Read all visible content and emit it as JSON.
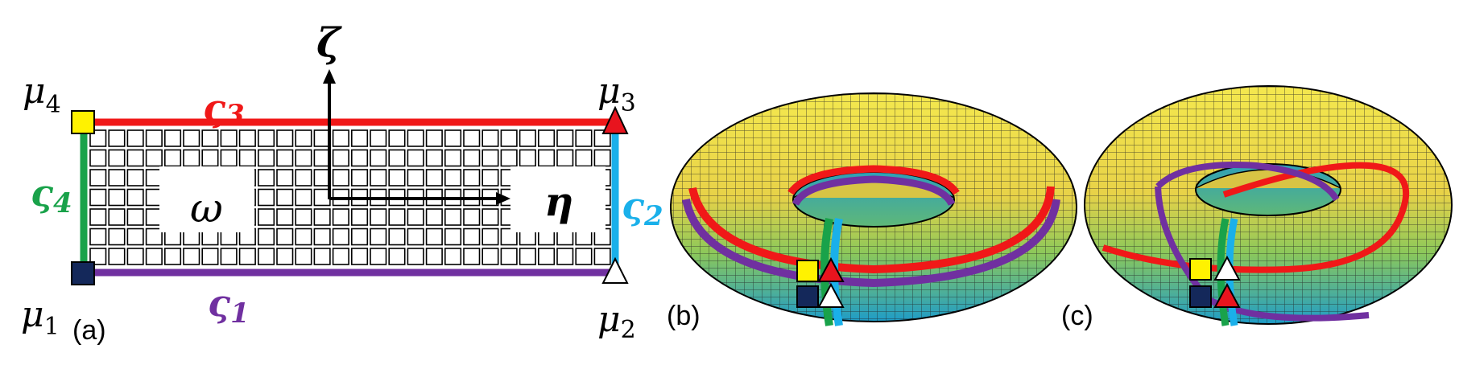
{
  "panel_a": {
    "panel_label": "(a)",
    "corners": {
      "mu1": {
        "base": "μ",
        "sub": "1"
      },
      "mu2": {
        "base": "μ",
        "sub": "2"
      },
      "mu3": {
        "base": "μ",
        "sub": "3"
      },
      "mu4": {
        "base": "μ",
        "sub": "4"
      }
    },
    "edges": {
      "s1": {
        "base": "ς",
        "sub": "1",
        "color": "#7030A0"
      },
      "s2": {
        "base": "ς",
        "sub": "2",
        "color": "#1AB0EA"
      },
      "s3": {
        "base": "ς",
        "sub": "3",
        "color": "#F01818"
      },
      "s4": {
        "base": "ς",
        "sub": "4",
        "color": "#19A24A"
      }
    },
    "axes": {
      "vertical": "ζ",
      "horizontal": "η"
    },
    "region_label": "ω"
  },
  "panel_b": {
    "panel_label": "(b)"
  },
  "panel_c": {
    "panel_label": "(c)"
  },
  "markers": {
    "mu1": {
      "shape": "square",
      "color": "#14285A"
    },
    "mu2": {
      "shape": "triangle",
      "color": "#FFFFFF"
    },
    "mu3": {
      "shape": "triangle",
      "color": "#E8141E"
    },
    "mu4": {
      "shape": "square",
      "color": "#FFF200"
    }
  },
  "colors": {
    "torus_top": "#F2E24A",
    "torus_mid": "#8CC85A",
    "torus_bottom": "#2EA8C8"
  }
}
